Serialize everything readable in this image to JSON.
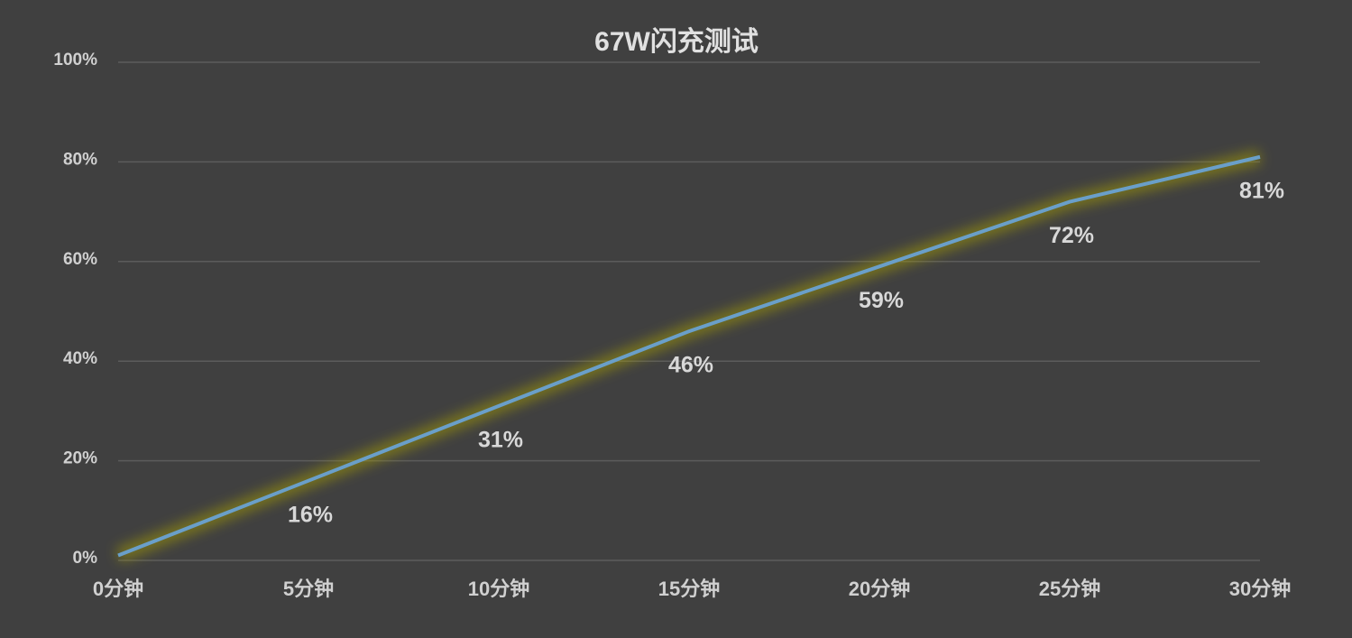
{
  "chart_data": {
    "type": "line",
    "title": "67W闪充测试",
    "categories": [
      "0分钟",
      "5分钟",
      "10分钟",
      "15分钟",
      "20分钟",
      "25分钟",
      "30分钟"
    ],
    "series": [
      {
        "color": "#6a9fc9",
        "values": [
          1,
          16,
          31,
          46,
          59,
          72,
          81
        ],
        "value_labels": [
          null,
          "16%",
          "31%",
          "46%",
          "59%",
          "72%",
          "81%"
        ]
      }
    ],
    "ylim": [
      0,
      100
    ],
    "yticks": [
      {
        "value": 0,
        "label": "0%"
      },
      {
        "value": 20,
        "label": "20%"
      },
      {
        "value": 40,
        "label": "40%"
      },
      {
        "value": 60,
        "label": "60%"
      },
      {
        "value": 80,
        "label": "80%"
      },
      {
        "value": 100,
        "label": "100%"
      }
    ],
    "grid": true
  }
}
